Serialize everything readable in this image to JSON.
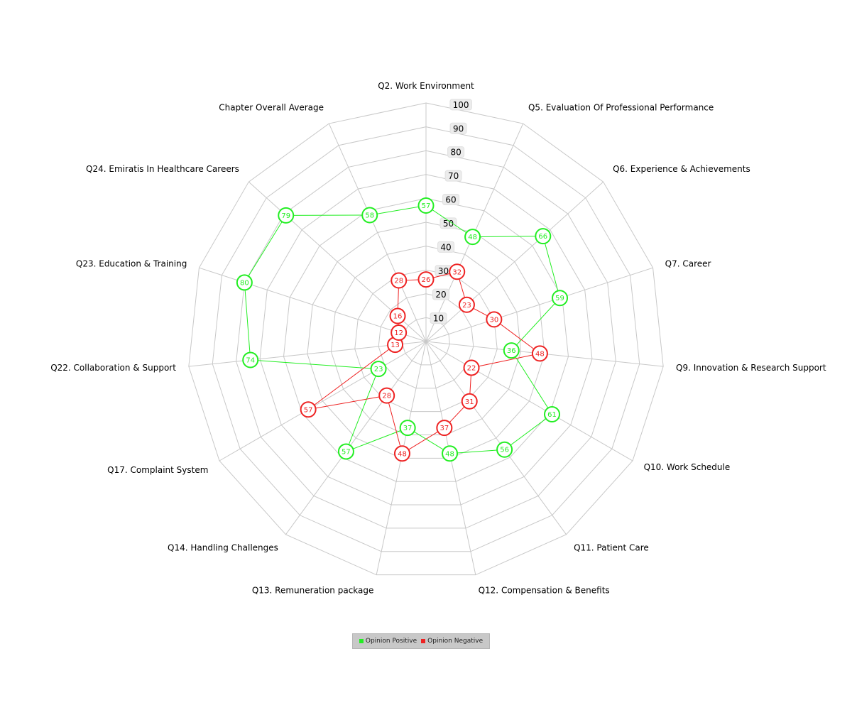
{
  "chart_data": {
    "type": "radar",
    "axes": [
      "Q2. Work Environment",
      "Q5. Evaluation Of Professional Performance",
      "Q6. Experience & Achievements",
      "Q7. Career",
      "Q9. Innovation & Research Support",
      "Q10. Work Schedule",
      "Q11. Patient Care",
      "Q12. Compensation & Benefits",
      "Q13. Remuneration package",
      "Q14. Handling Challenges",
      "Q17. Complaint System",
      "Q22. Collaboration & Support",
      "Q23. Education & Training",
      "Q24. Emiratis In Healthcare Careers",
      "Chapter Overall Average"
    ],
    "ticks": [
      "10",
      "20",
      "30",
      "40",
      "50",
      "60",
      "70",
      "80",
      "90",
      "100"
    ],
    "rlim": [
      0,
      100
    ],
    "grid": true,
    "legend_position": "bottom",
    "series": [
      {
        "name": "Opinion Positive",
        "color": "#22ee22",
        "values": [
          57,
          48,
          66,
          59,
          36,
          61,
          56,
          48,
          37,
          57,
          23,
          74,
          80,
          79,
          58
        ]
      },
      {
        "name": "Opinion Negative",
        "color": "#ee2222",
        "values": [
          26,
          32,
          23,
          30,
          48,
          22,
          31,
          37,
          48,
          28,
          57,
          13,
          12,
          16,
          28
        ]
      }
    ]
  }
}
